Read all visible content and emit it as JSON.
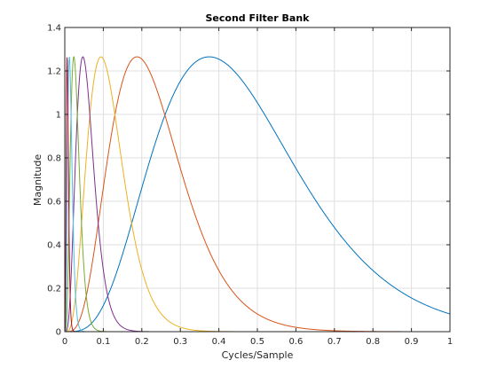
{
  "chart_data": {
    "type": "line",
    "title": "Second Filter Bank",
    "xlabel": "Cycles/Sample",
    "ylabel": "Magnitude",
    "xlim": [
      0,
      1
    ],
    "ylim": [
      0,
      1.4
    ],
    "grid": true,
    "xticks": [
      0,
      0.1,
      0.2,
      0.3,
      0.4,
      0.5,
      0.6,
      0.7,
      0.8,
      0.9,
      1
    ],
    "xtick_labels": [
      "0",
      "0.1",
      "0.2",
      "0.3",
      "0.4",
      "0.5",
      "0.6",
      "0.7",
      "0.8",
      "0.9",
      "1"
    ],
    "yticks": [
      0,
      0.2,
      0.4,
      0.6,
      0.8,
      1,
      1.2,
      1.4
    ],
    "ytick_labels": [
      "0",
      "0.2",
      "0.4",
      "0.6",
      "0.8",
      "1",
      "1.2",
      "1.4"
    ],
    "series": [
      {
        "center": 0.375,
        "peak": 1.265,
        "color": "#0072bd"
      },
      {
        "center": 0.1875,
        "peak": 1.265,
        "color": "#d95319"
      },
      {
        "center": 0.094,
        "peak": 1.265,
        "color": "#edb120"
      },
      {
        "center": 0.047,
        "peak": 1.265,
        "color": "#7e2f8e"
      },
      {
        "center": 0.0235,
        "peak": 1.265,
        "color": "#77ac30"
      },
      {
        "center": 0.0118,
        "peak": 1.265,
        "color": "#4dbeee"
      },
      {
        "center": 0.0059,
        "peak": 1.265,
        "color": "#a2142f"
      }
    ]
  }
}
